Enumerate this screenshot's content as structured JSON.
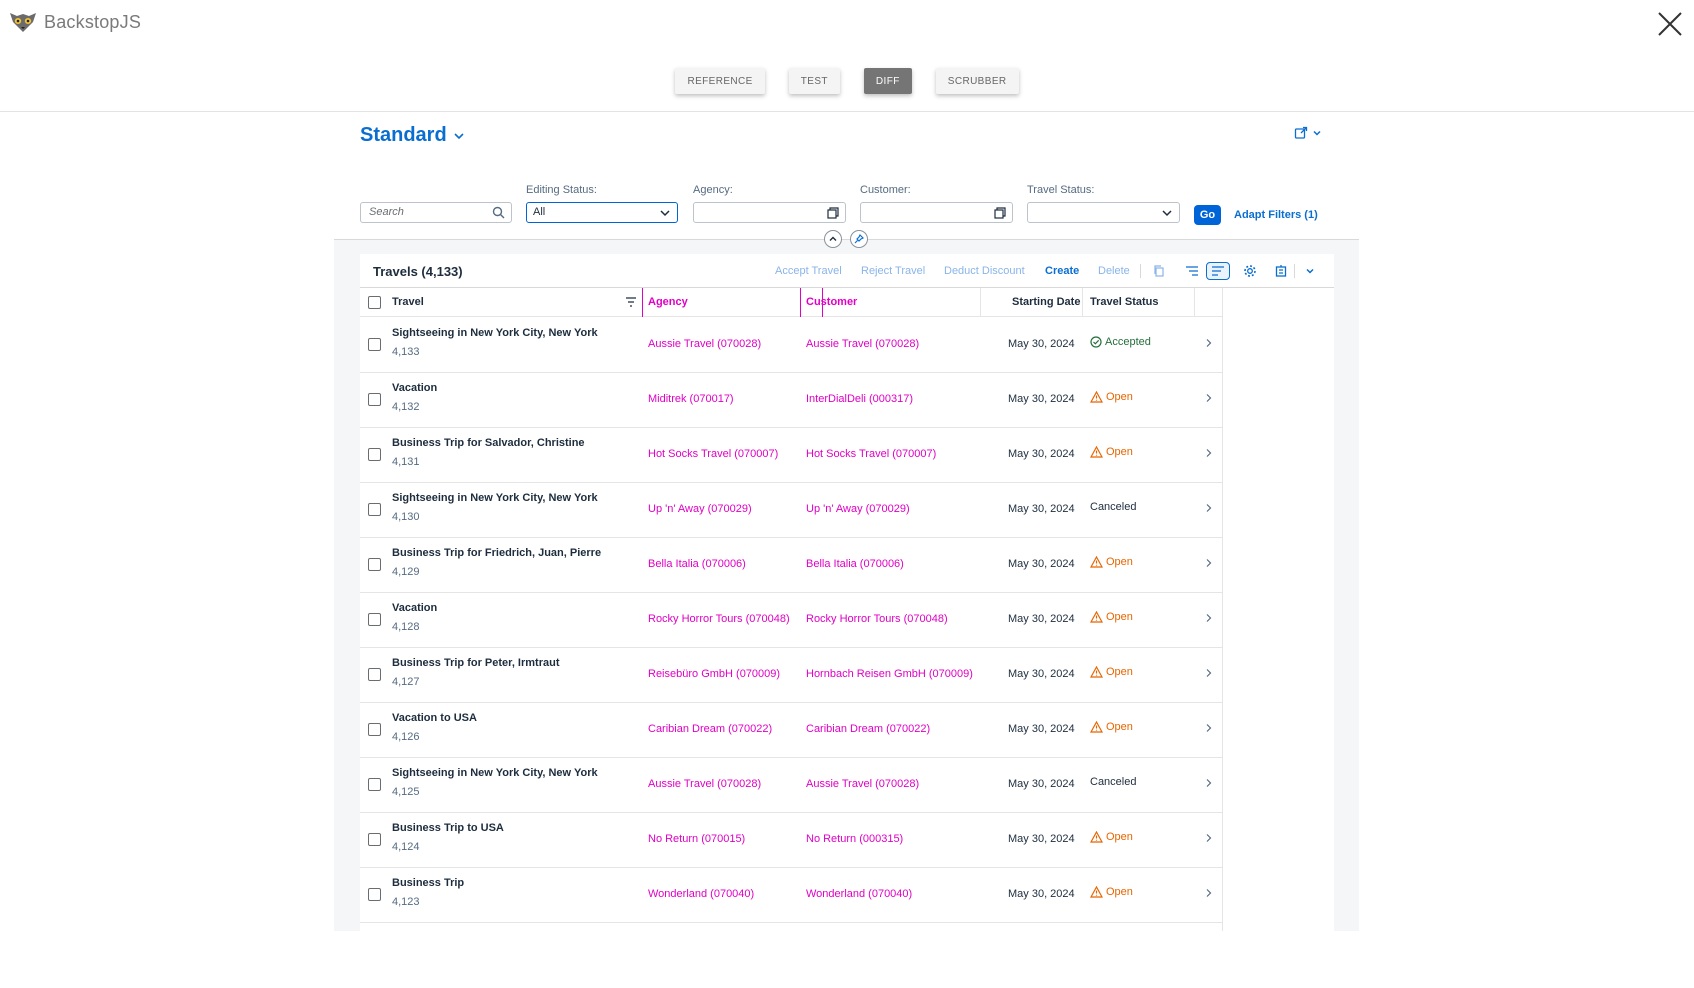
{
  "backstop": {
    "logo_text": "BackstopJS",
    "tabs": [
      {
        "label": "REFERENCE",
        "active": false
      },
      {
        "label": "TEST",
        "active": false
      },
      {
        "label": "DIFF",
        "active": true
      },
      {
        "label": "SCRUBBER",
        "active": false
      }
    ]
  },
  "variant": {
    "title": "Standard"
  },
  "filters": {
    "search_placeholder": "Search",
    "editing_status_label": "Editing Status:",
    "editing_status_value": "All",
    "agency_label": "Agency:",
    "customer_label": "Customer:",
    "travel_status_label": "Travel Status:",
    "go_label": "Go",
    "adapt_label": "Adapt Filters (1)"
  },
  "table": {
    "title": "Travels (4,133)",
    "actions": {
      "accept": "Accept Travel",
      "reject": "Reject Travel",
      "deduct": "Deduct Discount",
      "create": "Create",
      "delete": "Delete"
    },
    "columns": {
      "travel": "Travel",
      "agency": "Agency",
      "customer": "Customer",
      "starting_date": "Starting Date",
      "travel_status": "Travel Status"
    },
    "rows": [
      {
        "title": "Sightseeing in New York City, New York",
        "id": "4,133",
        "agency": "Aussie Travel (070028)",
        "customer": "Aussie Travel (070028)",
        "date": "May 30, 2024",
        "status": "Accepted",
        "status_type": "accepted"
      },
      {
        "title": "Vacation",
        "id": "4,132",
        "agency": "Miditrek (070017)",
        "customer": "InterDialDeli (000317)",
        "date": "May 30, 2024",
        "status": "Open",
        "status_type": "open"
      },
      {
        "title": "Business Trip for Salvador, Christine",
        "id": "4,131",
        "agency": "Hot Socks Travel (070007)",
        "customer": "Hot Socks Travel (070007)",
        "date": "May 30, 2024",
        "status": "Open",
        "status_type": "open"
      },
      {
        "title": "Sightseeing in New York City, New York",
        "id": "4,130",
        "agency": "Up 'n' Away (070029)",
        "customer": "Up 'n' Away (070029)",
        "date": "May 30, 2024",
        "status": "Canceled",
        "status_type": "canceled"
      },
      {
        "title": "Business Trip for Friedrich, Juan, Pierre",
        "id": "4,129",
        "agency": "Bella Italia (070006)",
        "customer": "Bella Italia (070006)",
        "date": "May 30, 2024",
        "status": "Open",
        "status_type": "open"
      },
      {
        "title": "Vacation",
        "id": "4,128",
        "agency": "Rocky Horror Tours (070048)",
        "customer": "Rocky Horror Tours (070048)",
        "date": "May 30, 2024",
        "status": "Open",
        "status_type": "open"
      },
      {
        "title": "Business Trip for Peter, Irmtraut",
        "id": "4,127",
        "agency": "Reisebüro GmbH (070009)",
        "customer": "Hornbach Reisen GmbH (070009)",
        "date": "May 30, 2024",
        "status": "Open",
        "status_type": "open"
      },
      {
        "title": "Vacation to USA",
        "id": "4,126",
        "agency": "Caribian Dream (070022)",
        "customer": "Caribian Dream (070022)",
        "date": "May 30, 2024",
        "status": "Open",
        "status_type": "open"
      },
      {
        "title": "Sightseeing in New York City, New York",
        "id": "4,125",
        "agency": "Aussie Travel (070028)",
        "customer": "Aussie Travel (070028)",
        "date": "May 30, 2024",
        "status": "Canceled",
        "status_type": "canceled"
      },
      {
        "title": "Business Trip to USA",
        "id": "4,124",
        "agency": "No Return (070015)",
        "customer": "No Return (000315)",
        "date": "May 30, 2024",
        "status": "Open",
        "status_type": "open"
      },
      {
        "title": "Business Trip",
        "id": "4,123",
        "agency": "Wonderland (070040)",
        "customer": "Wonderland (070040)",
        "date": "May 30, 2024",
        "status": "Open",
        "status_type": "open"
      }
    ]
  },
  "colors": {
    "accent": "#0a6ed1",
    "diff_highlight": "#e100c6",
    "status_open": "#e76500",
    "status_accepted": "#256f3a"
  }
}
